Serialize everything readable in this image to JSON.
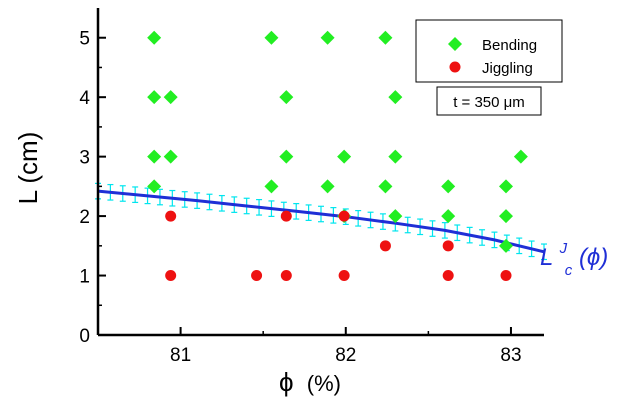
{
  "chart_data": {
    "type": "scatter",
    "xlabel_symbol": "ϕ",
    "xlabel_unit": "(%)",
    "ylabel": "L (cm)",
    "xlim": [
      80.5,
      83.2
    ],
    "ylim": [
      0,
      5.5
    ],
    "xticks": [
      "81",
      "82",
      "83"
    ],
    "xtick_values": [
      81,
      82,
      83
    ],
    "yticks": [
      "0",
      "1",
      "2",
      "3",
      "4",
      "5"
    ],
    "ytick_values": [
      0,
      1,
      2,
      3,
      4,
      5
    ],
    "series": [
      {
        "name": "Bending",
        "marker": "diamond",
        "color": "#22ee22",
        "points": [
          [
            80.84,
            5
          ],
          [
            80.84,
            4
          ],
          [
            80.94,
            4
          ],
          [
            80.84,
            3
          ],
          [
            80.94,
            3
          ],
          [
            80.84,
            2.5
          ],
          [
            81.55,
            5
          ],
          [
            81.64,
            4
          ],
          [
            81.64,
            3
          ],
          [
            81.55,
            2.5
          ],
          [
            81.89,
            5
          ],
          [
            81.99,
            3
          ],
          [
            81.89,
            2.5
          ],
          [
            81.99,
            2
          ],
          [
            82.24,
            5
          ],
          [
            82.3,
            4
          ],
          [
            82.3,
            3
          ],
          [
            82.24,
            2.5
          ],
          [
            82.3,
            2
          ],
          [
            82.62,
            2.5
          ],
          [
            82.62,
            2
          ],
          [
            82.97,
            2.5
          ],
          [
            83.06,
            3
          ],
          [
            82.97,
            2
          ],
          [
            82.97,
            1.5
          ]
        ]
      },
      {
        "name": "Jiggling",
        "marker": "circle",
        "color": "#ee1111",
        "points": [
          [
            80.94,
            2
          ],
          [
            80.94,
            1
          ],
          [
            81.46,
            1
          ],
          [
            81.64,
            2
          ],
          [
            81.64,
            1
          ],
          [
            81.99,
            2
          ],
          [
            81.99,
            1
          ],
          [
            82.24,
            1.5
          ],
          [
            82.62,
            1.5
          ],
          [
            82.62,
            1
          ],
          [
            82.97,
            1
          ]
        ]
      }
    ],
    "fit_curve": {
      "label_main": "L",
      "label_sup": "J",
      "label_sub": "c",
      "label_arg": "(ϕ)",
      "color": "#1f2fd6",
      "errorbar_color": "#00e5ee",
      "x": [
        80.5,
        80.8,
        81.1,
        81.4,
        81.7,
        82.0,
        82.3,
        82.6,
        82.9,
        83.2
      ],
      "y": [
        2.42,
        2.34,
        2.26,
        2.17,
        2.08,
        1.99,
        1.88,
        1.76,
        1.6,
        1.4
      ],
      "error": 0.13
    },
    "legend": {
      "position": "top-right",
      "entries": [
        "Bending",
        "Jiggling"
      ]
    },
    "annotation": "t = 350 μm",
    "grid": false
  }
}
